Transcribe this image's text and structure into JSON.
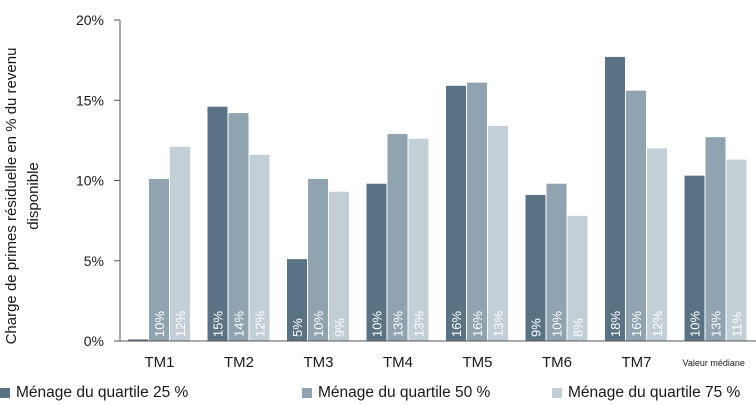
{
  "chart_data": {
    "type": "bar",
    "ylabel_lines": [
      "Charge de primes résiduelle en % du revenu",
      "disponible"
    ],
    "yticks": [
      "0%",
      "5%",
      "10%",
      "15%",
      "20%"
    ],
    "ylim": [
      0,
      20
    ],
    "grid": false,
    "legend_position": "bottom",
    "categories": [
      "TM1",
      "TM2",
      "TM3",
      "TM4",
      "TM5",
      "TM6",
      "TM7",
      "Valeur médiane"
    ],
    "series": [
      {
        "name": "Ménage du quartile 25 %",
        "color": "#5a7384",
        "values": [
          0.1,
          14.6,
          5.1,
          9.8,
          15.9,
          9.1,
          17.7,
          10.3
        ],
        "labels": [
          "0%",
          "15%",
          "5%",
          "10%",
          "16%",
          "9%",
          "18%",
          "10%"
        ]
      },
      {
        "name": "Ménage du quartile 50 %",
        "color": "#8fa3b0",
        "values": [
          10.1,
          14.2,
          10.1,
          12.9,
          16.1,
          9.8,
          15.6,
          12.7
        ],
        "labels": [
          "10%",
          "14%",
          "10%",
          "13%",
          "16%",
          "10%",
          "16%",
          "13%"
        ]
      },
      {
        "name": "Ménage du quartile 75 %",
        "color": "#c3cfd7",
        "values": [
          12.1,
          11.6,
          9.3,
          12.6,
          13.4,
          7.8,
          12.0,
          11.3
        ],
        "labels": [
          "12%",
          "12%",
          "9%",
          "13%",
          "13%",
          "8%",
          "12%",
          "11%"
        ]
      }
    ]
  }
}
